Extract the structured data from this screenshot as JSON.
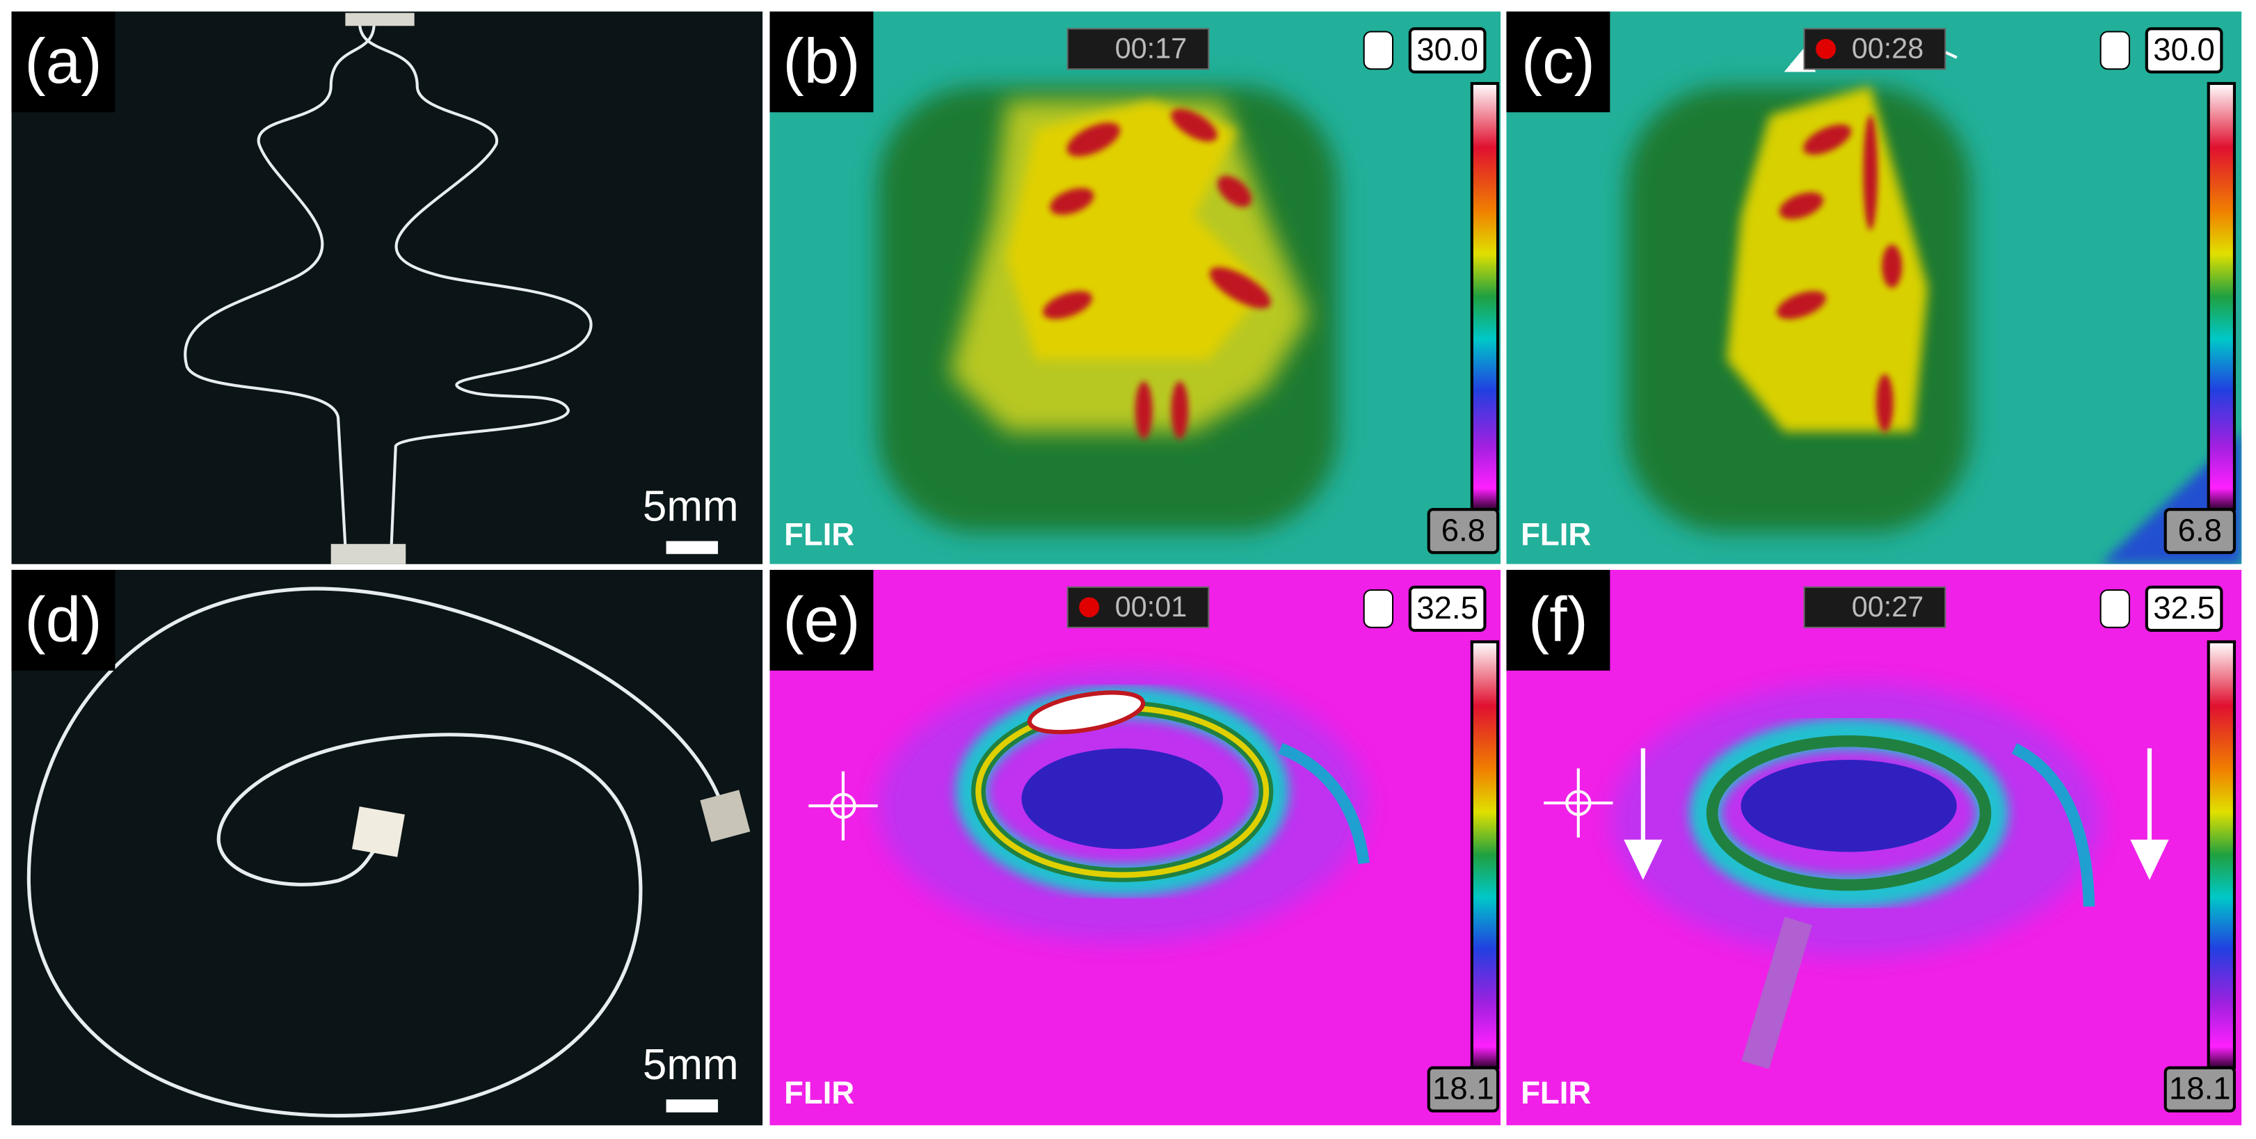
{
  "panels": [
    {
      "label": "(a)",
      "scale_bar": "5mm"
    },
    {
      "label": "(b)",
      "time": "00:17",
      "max": "30.0",
      "min": "6.8",
      "brand": "FLIR"
    },
    {
      "label": "(c)",
      "time": "00:28",
      "max": "30.0",
      "min": "6.8",
      "brand": "FLIR"
    },
    {
      "label": "(d)",
      "scale_bar": "5mm"
    },
    {
      "label": "(e)",
      "time": "00:01",
      "max": "32.5",
      "min": "18.1",
      "brand": "FLIR"
    },
    {
      "label": "(f)",
      "time": "00:27",
      "max": "32.5",
      "min": "18.1",
      "brand": "FLIR"
    }
  ]
}
